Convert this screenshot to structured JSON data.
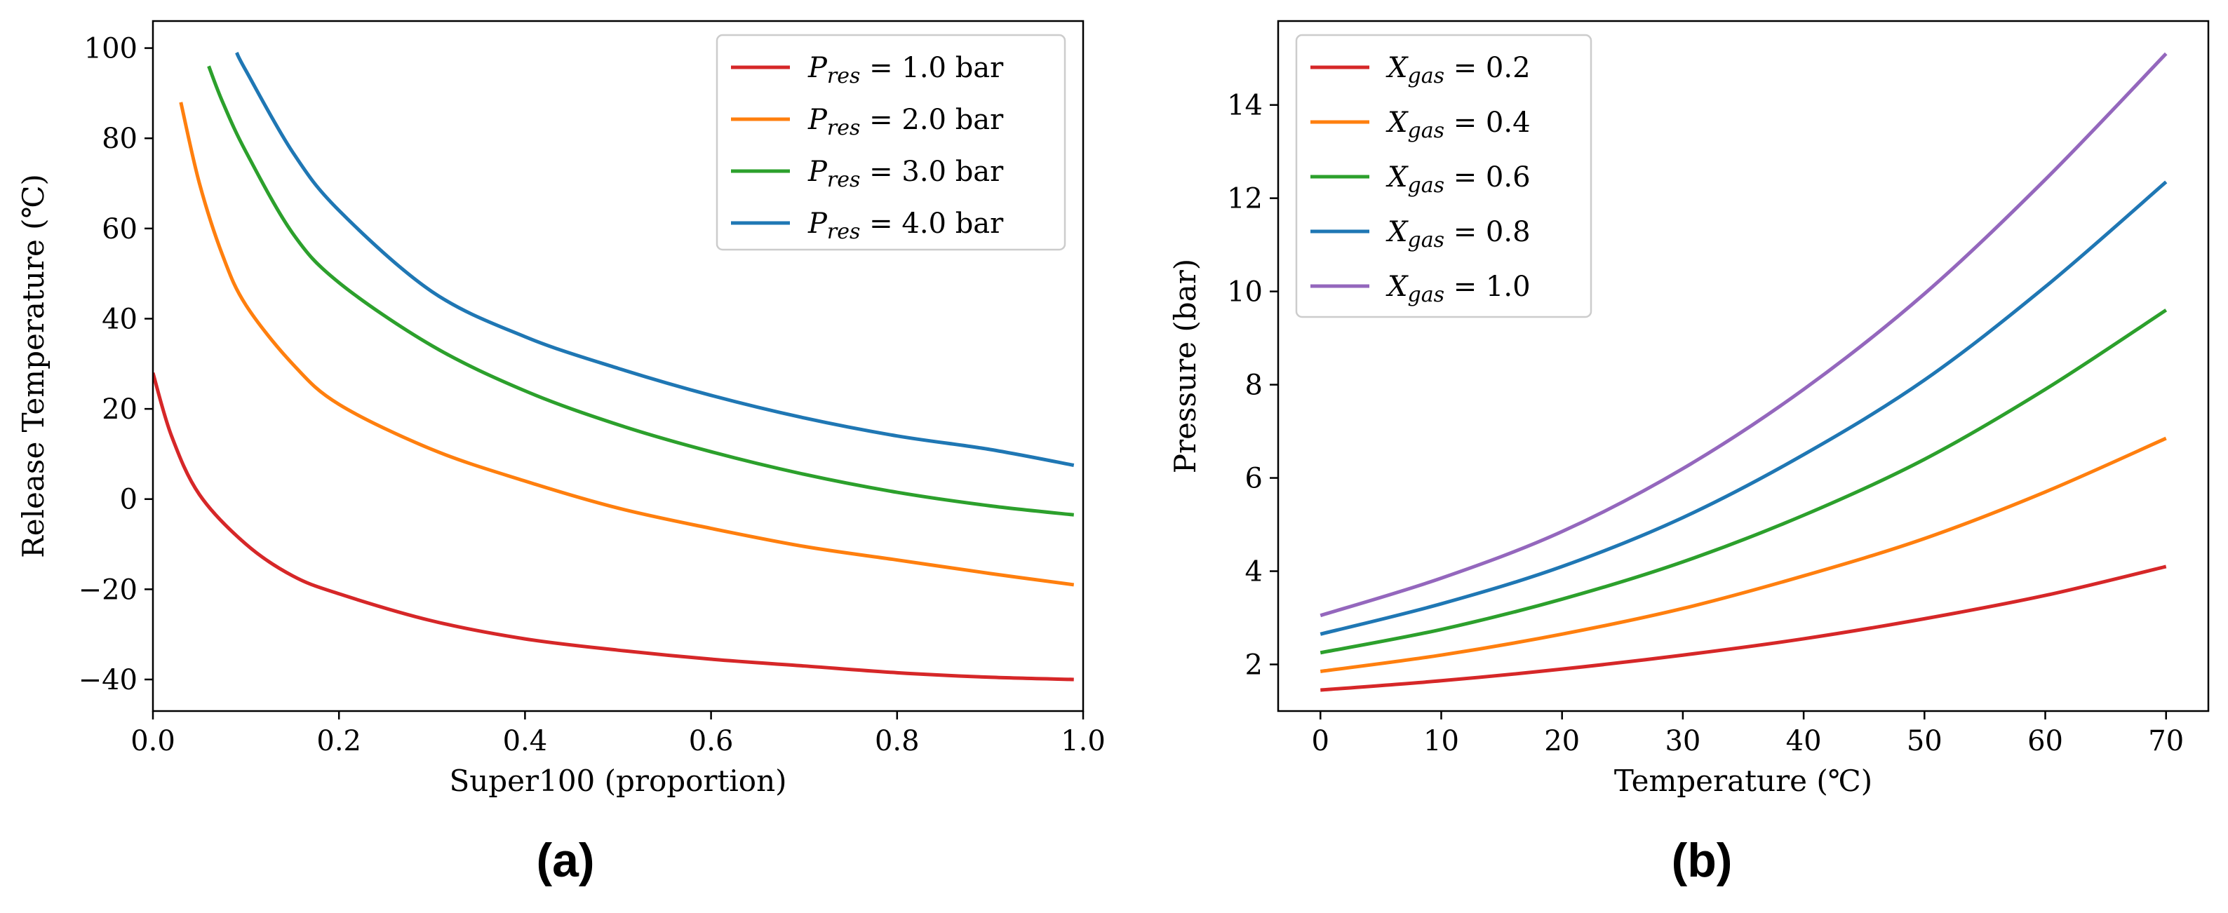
{
  "chart_data": [
    {
      "type": "line",
      "panel_label": "(a)",
      "xlabel": "Super100 (proportion)",
      "ylabel": "Release Temperature (℃)",
      "xlim": [
        0.0,
        1.0
      ],
      "ylim": [
        -47,
        106
      ],
      "x_ticks": [
        "0.0",
        "0.2",
        "0.4",
        "0.6",
        "0.8",
        "1.0"
      ],
      "y_ticks": [
        "−40",
        "−20",
        "0",
        "20",
        "40",
        "60",
        "80",
        "100"
      ],
      "legend_position": "upper right",
      "grid": false,
      "series": [
        {
          "name": "P_res = 1.0 bar",
          "legend": {
            "sym": "P",
            "sub": "res",
            "rhs": " = 1.0 bar"
          },
          "color": "#d62728",
          "x": [
            0.0,
            0.02,
            0.05,
            0.1,
            0.15,
            0.2,
            0.3,
            0.4,
            0.5,
            0.6,
            0.7,
            0.8,
            0.9,
            0.99
          ],
          "y": [
            28,
            14,
            1,
            -10,
            -17,
            -21,
            -27,
            -31,
            -33.5,
            -35.5,
            -37,
            -38.5,
            -39.5,
            -40
          ]
        },
        {
          "name": "P_res = 2.0 bar",
          "legend": {
            "sym": "P",
            "sub": "res",
            "rhs": " = 2.0 bar"
          },
          "color": "#ff7f0e",
          "x": [
            0.03,
            0.05,
            0.075,
            0.1,
            0.15,
            0.2,
            0.3,
            0.4,
            0.5,
            0.6,
            0.7,
            0.8,
            0.9,
            0.99
          ],
          "y": [
            88,
            70,
            54,
            43,
            30,
            21,
            11,
            4,
            -2,
            -6.5,
            -10.5,
            -13.5,
            -16.5,
            -19
          ]
        },
        {
          "name": "P_res = 3.0 bar",
          "legend": {
            "sym": "P",
            "sub": "res",
            "rhs": " = 3.0 bar"
          },
          "color": "#2ca02c",
          "x": [
            0.06,
            0.075,
            0.1,
            0.15,
            0.2,
            0.3,
            0.4,
            0.5,
            0.6,
            0.7,
            0.8,
            0.9,
            0.99
          ],
          "y": [
            96,
            88,
            77,
            59,
            48,
            34,
            24,
            16.5,
            10.5,
            5.5,
            1.5,
            -1.5,
            -3.5
          ]
        },
        {
          "name": "P_res = 4.0 bar",
          "legend": {
            "sym": "P",
            "sub": "res",
            "rhs": " = 4.0 bar"
          },
          "color": "#1f77b4",
          "x": [
            0.09,
            0.1,
            0.15,
            0.2,
            0.3,
            0.4,
            0.5,
            0.6,
            0.7,
            0.8,
            0.9,
            0.99
          ],
          "y": [
            99,
            95,
            77,
            64,
            46,
            36,
            29,
            23,
            18,
            14,
            11,
            7.5
          ]
        }
      ]
    },
    {
      "type": "line",
      "panel_label": "(b)",
      "xlabel": "Temperature (℃)",
      "ylabel": "Pressure (bar)",
      "xlim": [
        -3.5,
        73.5
      ],
      "ylim": [
        1.0,
        15.8
      ],
      "x_ticks": [
        "0",
        "10",
        "20",
        "30",
        "40",
        "50",
        "60",
        "70"
      ],
      "y_ticks": [
        "2",
        "4",
        "6",
        "8",
        "10",
        "12",
        "14"
      ],
      "legend_position": "upper left",
      "grid": false,
      "series": [
        {
          "name": "X_gas = 0.2",
          "legend": {
            "sym": "X",
            "sub": "gas",
            "rhs": " = 0.2"
          },
          "color": "#d62728",
          "x": [
            0,
            10,
            20,
            30,
            40,
            50,
            60,
            70
          ],
          "y": [
            1.45,
            1.65,
            1.9,
            2.2,
            2.55,
            2.98,
            3.48,
            4.1
          ]
        },
        {
          "name": "X_gas = 0.4",
          "legend": {
            "sym": "X",
            "sub": "gas",
            "rhs": " = 0.4"
          },
          "color": "#ff7f0e",
          "x": [
            0,
            10,
            20,
            30,
            40,
            50,
            60,
            70
          ],
          "y": [
            1.85,
            2.2,
            2.65,
            3.2,
            3.9,
            4.7,
            5.7,
            6.85
          ]
        },
        {
          "name": "X_gas = 0.6",
          "legend": {
            "sym": "X",
            "sub": "gas",
            "rhs": " = 0.6"
          },
          "color": "#2ca02c",
          "x": [
            0,
            10,
            20,
            30,
            40,
            50,
            60,
            70
          ],
          "y": [
            2.25,
            2.75,
            3.4,
            4.2,
            5.2,
            6.4,
            7.9,
            9.6
          ]
        },
        {
          "name": "X_gas = 0.8",
          "legend": {
            "sym": "X",
            "sub": "gas",
            "rhs": " = 0.8"
          },
          "color": "#1f77b4",
          "x": [
            0,
            10,
            20,
            30,
            40,
            50,
            60,
            70
          ],
          "y": [
            2.65,
            3.3,
            4.1,
            5.15,
            6.5,
            8.1,
            10.1,
            12.35
          ]
        },
        {
          "name": "X_gas = 1.0",
          "legend": {
            "sym": "X",
            "sub": "gas",
            "rhs": " = 1.0"
          },
          "color": "#9467bd",
          "x": [
            0,
            10,
            20,
            30,
            40,
            50,
            60,
            70
          ],
          "y": [
            3.05,
            3.85,
            4.85,
            6.2,
            7.9,
            9.95,
            12.4,
            15.1
          ]
        }
      ]
    }
  ]
}
